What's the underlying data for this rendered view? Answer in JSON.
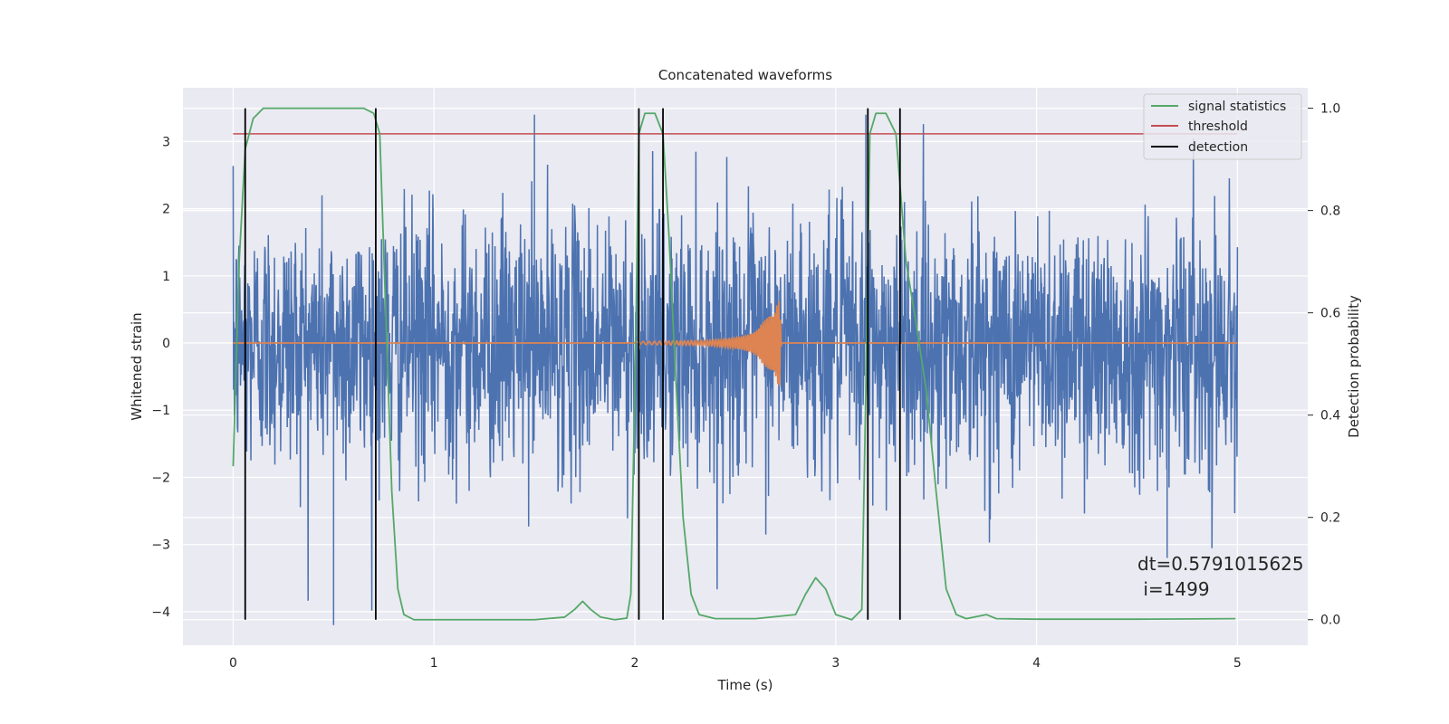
{
  "chart_data": {
    "type": "line",
    "title": "Concatenated waveforms",
    "xlabel": "Time (s)",
    "ylabel": "Whitened strain",
    "ylabel_right": "Detection probability",
    "xlim": [
      -0.25,
      5.35
    ],
    "ylim": [
      -4.5,
      3.8
    ],
    "ylim_right": [
      -0.05,
      1.04
    ],
    "x_ticks": [
      0,
      1,
      2,
      3,
      4,
      5
    ],
    "y_ticks": [
      -4,
      -3,
      -2,
      -1,
      0,
      1,
      2,
      3
    ],
    "y_ticks_right": [
      0.0,
      0.2,
      0.4,
      0.6,
      0.8,
      1.0
    ],
    "x_tick_labels": [
      "0",
      "1",
      "2",
      "3",
      "4",
      "5"
    ],
    "y_tick_labels": [
      "−4",
      "−3",
      "−2",
      "−1",
      "0",
      "1",
      "2",
      "3"
    ],
    "y_tick_labels_right": [
      "0.0",
      "0.2",
      "0.4",
      "0.6",
      "0.8",
      "1.0"
    ],
    "grid": true,
    "legend_position": "top-right",
    "annotation_lines": [
      "dt=0.5791015625",
      " i=1499"
    ],
    "series": [
      {
        "name": "",
        "axis": "left",
        "color": "#4c72b0",
        "description": "whitened strain noise",
        "x_range": [
          0,
          5
        ],
        "typical_envelope": [
          -1.3,
          1.5
        ],
        "extremes": [
          [
            0.5,
            -4.2
          ],
          [
            1.5,
            3.4
          ],
          [
            4.65,
            -3.2
          ],
          [
            3.15,
            3.4
          ]
        ]
      },
      {
        "name": "",
        "axis": "left",
        "color": "#dd8452",
        "description": "injected chirp waveform",
        "x": [
          0,
          2.0,
          2.2,
          2.4,
          2.6,
          2.7,
          2.72,
          2.73,
          5.0
        ],
        "amplitude": [
          0,
          0.05,
          0.08,
          0.1,
          0.14,
          0.3,
          0.45,
          0.0,
          0
        ]
      },
      {
        "name": "signal statistics",
        "axis": "right",
        "color": "#55a868",
        "x": [
          0,
          0.03,
          0.06,
          0.1,
          0.15,
          0.25,
          0.4,
          0.55,
          0.65,
          0.7,
          0.73,
          0.76,
          0.79,
          0.82,
          0.85,
          0.9,
          1.2,
          1.5,
          1.65,
          1.7,
          1.74,
          1.78,
          1.83,
          1.9,
          1.96,
          1.98,
          2.0,
          2.02,
          2.05,
          2.1,
          2.14,
          2.17,
          2.2,
          2.24,
          2.28,
          2.32,
          2.4,
          2.6,
          2.8,
          2.85,
          2.9,
          2.95,
          3.0,
          3.08,
          3.13,
          3.15,
          3.17,
          3.2,
          3.25,
          3.3,
          3.35,
          3.4,
          3.45,
          3.5,
          3.55,
          3.6,
          3.65,
          3.75,
          3.8,
          4.0,
          4.5,
          4.99
        ],
        "values": [
          0.3,
          0.7,
          0.92,
          0.98,
          1.0,
          1.0,
          1.0,
          1.0,
          1.0,
          0.99,
          0.95,
          0.6,
          0.25,
          0.06,
          0.01,
          0.0,
          0.0,
          0.0,
          0.005,
          0.02,
          0.036,
          0.02,
          0.005,
          0.0,
          0.003,
          0.05,
          0.45,
          0.95,
          0.99,
          0.99,
          0.95,
          0.75,
          0.5,
          0.2,
          0.05,
          0.01,
          0.002,
          0.002,
          0.01,
          0.05,
          0.082,
          0.06,
          0.01,
          0.0,
          0.02,
          0.45,
          0.95,
          0.99,
          0.99,
          0.95,
          0.7,
          0.58,
          0.45,
          0.25,
          0.06,
          0.01,
          0.002,
          0.01,
          0.002,
          0.001,
          0.001,
          0.002
        ]
      },
      {
        "name": "threshold",
        "axis": "right",
        "color": "#c44e52",
        "x": [
          0,
          5
        ],
        "values": [
          0.95,
          0.95
        ]
      },
      {
        "name": "detection",
        "axis": "right",
        "color": "#000000",
        "type": "vlines",
        "x": [
          0.06,
          0.71,
          2.02,
          2.14,
          3.16,
          3.32
        ],
        "y_range": [
          0,
          1.0
        ]
      }
    ]
  }
}
